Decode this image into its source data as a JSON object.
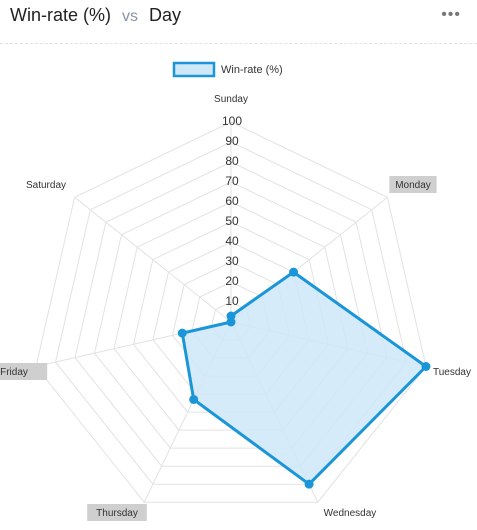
{
  "header": {
    "title_left": "Win-rate (%)",
    "title_vs": "vs",
    "title_right": "Day",
    "menu_icon": "ellipsis-icon"
  },
  "colors": {
    "series_stroke": "#1a96d8",
    "series_fill": "#cfe8f8",
    "grid": "#e2e2e2",
    "label_bg": "#cfcfcf"
  },
  "chart_data": {
    "type": "radar",
    "categories": [
      "Sunday",
      "Monday",
      "Tuesday",
      "Wednesday",
      "Thursday",
      "Friday",
      "Saturday"
    ],
    "highlighted_categories": [
      "Monday",
      "Friday",
      "Thursday"
    ],
    "series": [
      {
        "name": "Win-rate (%)",
        "values": [
          3,
          40,
          100,
          90,
          43,
          25,
          0
        ]
      }
    ],
    "r_ticks": [
      10,
      20,
      30,
      40,
      50,
      60,
      70,
      80,
      90,
      100
    ],
    "rlim": [
      0,
      100
    ],
    "grid": true,
    "legend_position": "top-center"
  }
}
